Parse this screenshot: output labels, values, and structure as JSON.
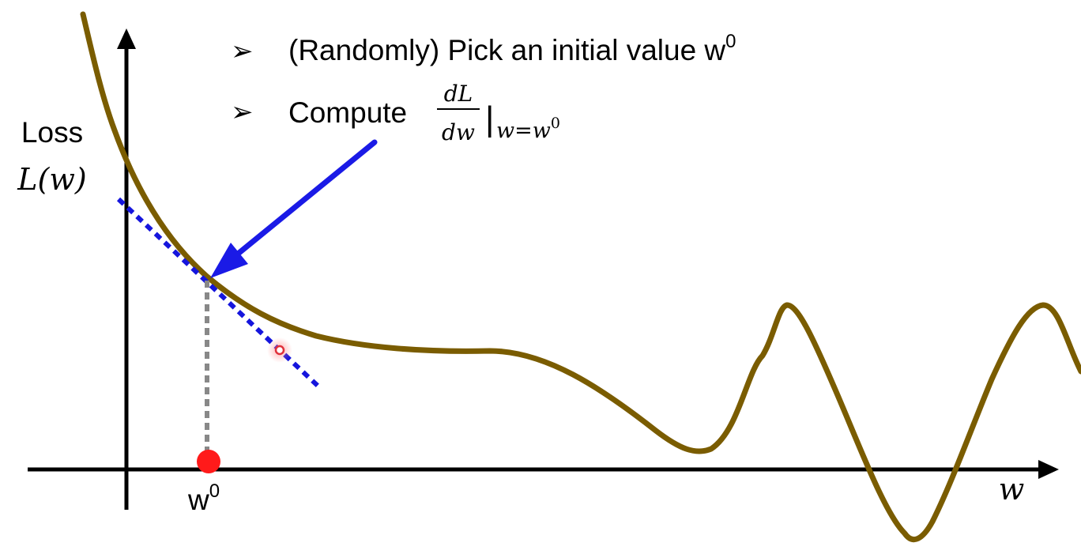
{
  "bullets": [
    {
      "marker": "➢",
      "text": "(Randomly) Pick an initial value w",
      "sup": "0"
    },
    {
      "marker": "➢",
      "text": "Compute",
      "frac_num": "dL",
      "frac_den": "dw",
      "eval_bar": "|",
      "eval_sub": "w=w",
      "eval_sub_sup": "0"
    }
  ],
  "y_axis": {
    "label_line1": "Loss",
    "label_line2": "L(w)"
  },
  "x_axis": {
    "label": "w"
  },
  "w0_label": {
    "base": "w",
    "sup": "0"
  },
  "colors": {
    "curve": "#7a5c00",
    "tangent": "#1515dd",
    "arrow": "#1a1ae6",
    "axes": "#000000",
    "dropline": "#888888",
    "point": "#ff1a1a",
    "cursor": "#e0303a"
  }
}
